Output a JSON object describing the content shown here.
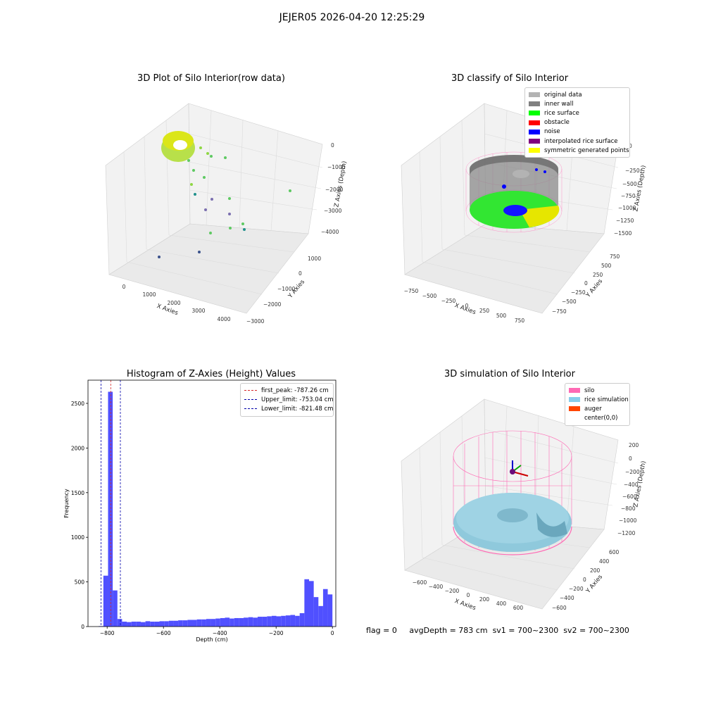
{
  "figure": {
    "suptitle": "JEJER05 2026-04-20 12:25:29",
    "status": {
      "flag": "flag = 0",
      "avg_depth": "avgDepth = 783 cm",
      "sv1": "sv1 = 700~2300",
      "sv2": "sv2 = 700~2300"
    }
  },
  "chart_data": [
    {
      "type": "scatter",
      "title": "3D Plot of Silo Interior(row data)",
      "xlabel": "X Axies",
      "ylabel": "Y Axies",
      "zlabel": "Z Axies (Depth)",
      "x_ticks": [
        "0",
        "1000",
        "2000",
        "3000",
        "4000"
      ],
      "y_ticks": [
        "1000",
        "0",
        "−1000",
        "−2000",
        "−3000"
      ],
      "z_ticks": [
        "0",
        "−1000",
        "−2000",
        "−3000",
        "−4000"
      ]
    },
    {
      "type": "scatter",
      "title": "3D classify of Silo Interior",
      "xlabel": "X Axies",
      "ylabel": "Y Axies",
      "zlabel": "Z Axies (Depth)",
      "x_ticks": [
        "−750",
        "−500",
        "−250",
        "0",
        "250",
        "500",
        "750"
      ],
      "y_ticks": [
        "750",
        "500",
        "250",
        "0",
        "−250",
        "−500",
        "−750"
      ],
      "z_ticks": [
        "0",
        "−250",
        "−500",
        "−750",
        "−1000",
        "−1250",
        "−1500"
      ],
      "legend": [
        {
          "label": "original data",
          "color": "#b3b3b3"
        },
        {
          "label": "inner wall",
          "color": "#808080"
        },
        {
          "label": "rice surface",
          "color": "#00ff00"
        },
        {
          "label": "obstacle",
          "color": "#ff0000"
        },
        {
          "label": "noise",
          "color": "#0000ff"
        },
        {
          "label": "interpolated rice surface",
          "color": "#800080"
        },
        {
          "label": "symmetric generated points",
          "color": "#ffff00"
        }
      ]
    },
    {
      "type": "bar",
      "title": "Histogram of Z-Axies (Height) Values",
      "xlabel": "Depth (cm)",
      "ylabel": "Frequency",
      "xlim": [
        -868,
        12
      ],
      "ylim": [
        0,
        2760
      ],
      "x_ticks": [
        {
          "value": -800,
          "label": "−800"
        },
        {
          "value": -600,
          "label": "−600"
        },
        {
          "value": -400,
          "label": "−400"
        },
        {
          "value": -200,
          "label": "−200"
        },
        {
          "value": 0,
          "label": "0"
        }
      ],
      "y_ticks": [
        {
          "value": 0,
          "label": "0"
        },
        {
          "value": 500,
          "label": "500"
        },
        {
          "value": 1000,
          "label": "1000"
        },
        {
          "value": 1500,
          "label": "1500"
        },
        {
          "value": 2000,
          "label": "2000"
        },
        {
          "value": 2500,
          "label": "2500"
        }
      ],
      "bin_start": -830,
      "bin_width": 16.6,
      "values": [
        5,
        570,
        2630,
        405,
        85,
        55,
        50,
        55,
        55,
        50,
        60,
        55,
        55,
        60,
        60,
        65,
        65,
        70,
        70,
        75,
        75,
        80,
        80,
        85,
        85,
        90,
        95,
        100,
        90,
        95,
        95,
        100,
        105,
        100,
        110,
        110,
        115,
        120,
        115,
        120,
        125,
        130,
        120,
        150,
        530,
        510,
        330,
        230,
        420,
        360
      ],
      "bar_color": "#5050ff",
      "vlines": [
        {
          "label": "first_peak: -787.26 cm",
          "value": -787.26,
          "color": "#d62728"
        },
        {
          "label": "Upper_limit: -753.04 cm",
          "value": -753.04,
          "color": "#0000aa"
        },
        {
          "label": "Lower_limit: -821.48 cm",
          "value": -821.48,
          "color": "#0000aa"
        }
      ]
    },
    {
      "type": "scatter",
      "title": "3D simulation of Silo Interior",
      "xlabel": "X Axies",
      "ylabel": "Y Axies",
      "zlabel": "Z Axies (Depth)",
      "x_ticks": [
        "−600",
        "−400",
        "−200",
        "0",
        "200",
        "400",
        "600"
      ],
      "y_ticks": [
        "600",
        "400",
        "200",
        "0",
        "−200",
        "−400",
        "−600"
      ],
      "z_ticks": [
        "200",
        "0",
        "−200",
        "−400",
        "−600",
        "−800",
        "−1000",
        "−1200"
      ],
      "legend": [
        {
          "label": "silo",
          "color": "#ff69b4"
        },
        {
          "label": "rice simulation",
          "color": "#87ceeb"
        },
        {
          "label": "auger",
          "color": "#ff4500"
        },
        {
          "label": "center(0,0)",
          "color": ""
        }
      ]
    }
  ]
}
